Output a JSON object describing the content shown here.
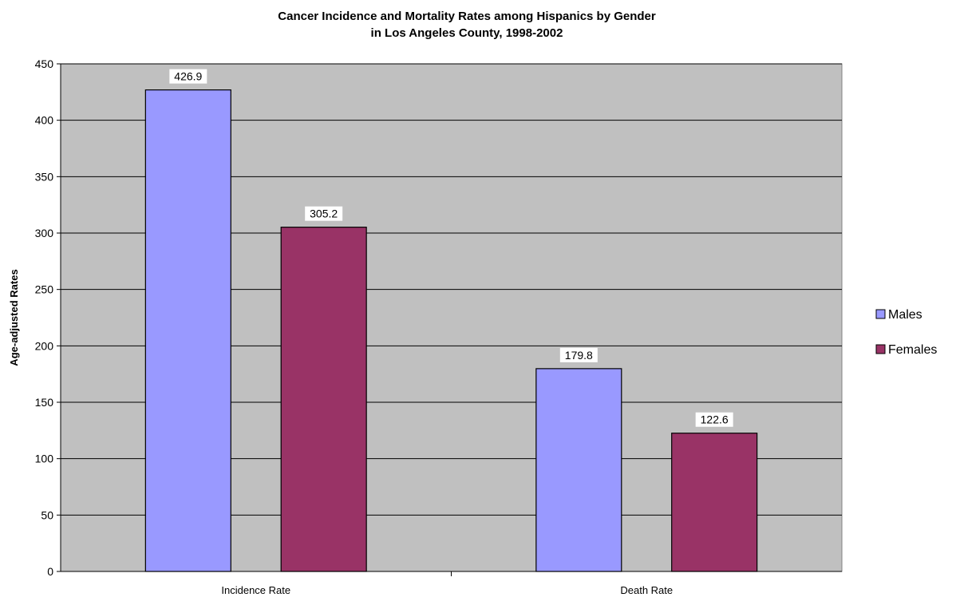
{
  "chart_data": {
    "type": "bar",
    "title": "Cancer Incidence and Mortality Rates among Hispanics by Gender",
    "subtitle": "in Los Angeles County, 1998-2002",
    "xlabel": "",
    "ylabel": "Age-adjusted Rates",
    "categories": [
      "Incidence Rate",
      "Death Rate"
    ],
    "series": [
      {
        "name": "Males",
        "values": [
          426.9,
          179.8
        ],
        "color": "#9999ff"
      },
      {
        "name": "Females",
        "values": [
          305.2,
          122.6
        ],
        "color": "#993366"
      }
    ],
    "data_labels": [
      [
        "426.9",
        "179.8"
      ],
      [
        "305.2",
        "122.6"
      ]
    ],
    "ylim": [
      0,
      450
    ],
    "yticks": [
      0,
      50,
      100,
      150,
      200,
      250,
      300,
      350,
      400,
      450
    ],
    "grid": true,
    "legend_position": "right",
    "plot_background": "#c0c0c0"
  }
}
